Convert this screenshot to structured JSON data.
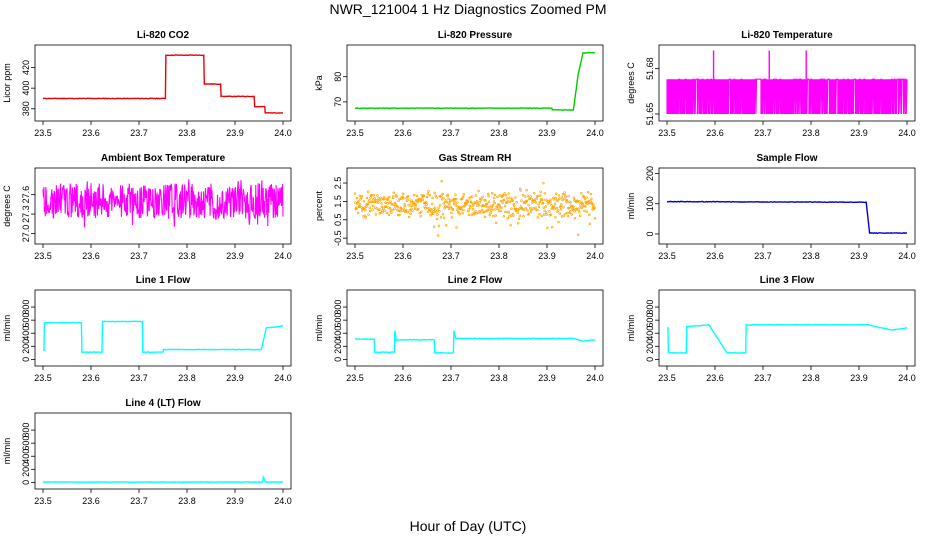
{
  "page": {
    "title": "NWR_121004  1 Hz Diagnostics Zoomed PM",
    "xlabel": "Hour of Day (UTC)"
  },
  "chart_data": [
    {
      "type": "line",
      "title": "Li-820 CO2",
      "ylabel": "Licor ppm",
      "color": "#e8000b",
      "xlim": [
        23.5,
        24.0
      ],
      "ylim": [
        372,
        438
      ],
      "xticks": [
        "23.5",
        "23.6",
        "23.7",
        "23.8",
        "23.9",
        "24.0"
      ],
      "yticks": [
        380,
        400,
        420
      ],
      "series": [
        {
          "x": [
            23.5,
            23.755,
            23.756,
            23.835,
            23.836,
            23.87,
            23.871,
            23.94,
            23.941,
            23.962,
            23.963,
            24.0
          ],
          "y": [
            390,
            390,
            432,
            432,
            404,
            404,
            392,
            392,
            382,
            382,
            376,
            376
          ]
        }
      ]
    },
    {
      "type": "line",
      "title": "Li-820 Pressure",
      "ylabel": "kPa",
      "color": "#00cc00",
      "xlim": [
        23.5,
        24.0
      ],
      "ylim": [
        64,
        91
      ],
      "xticks": [
        "23.5",
        "23.6",
        "23.7",
        "23.8",
        "23.9",
        "24.0"
      ],
      "yticks": [
        70,
        80
      ],
      "series": [
        {
          "x": [
            23.5,
            23.91,
            23.911,
            23.955,
            23.965,
            23.975,
            24.0
          ],
          "y": [
            67.5,
            67.5,
            66.8,
            66.8,
            81,
            89.5,
            89.5
          ]
        }
      ]
    },
    {
      "type": "line",
      "title": "Li-820 Temperature",
      "ylabel": "degrees C",
      "color": "#ff00ff",
      "xlim": [
        23.5,
        24.0
      ],
      "ylim": [
        51.648,
        51.693
      ],
      "xticks": [
        "23.5",
        "23.6",
        "23.7",
        "23.8",
        "23.9",
        "24.0"
      ],
      "yticks": [
        51.65,
        51.68
      ],
      "yticklabels": [
        "51.65",
        "51.68"
      ],
      "noise": {
        "low": 51.65,
        "high": 51.673,
        "spikes": [
          23.597,
          23.713,
          23.79
        ],
        "spike_value": 51.692
      }
    },
    {
      "type": "line",
      "title": "Ambient Box Temperature",
      "ylabel": "degrees C",
      "color": "#ff00ff",
      "xlim": [
        23.5,
        24.0
      ],
      "ylim": [
        26.9,
        27.95
      ],
      "xticks": [
        "23.5",
        "23.6",
        "23.7",
        "23.8",
        "23.9",
        "24.0"
      ],
      "yticks": [
        27.0,
        27.3,
        27.6
      ],
      "yticklabels": [
        "27.0",
        "27.3",
        "27.6"
      ],
      "noise": {
        "center": 27.5,
        "range": [
          27.05,
          27.87
        ]
      }
    },
    {
      "type": "scatter",
      "title": "Gas Stream RH",
      "ylabel": "percent",
      "color": "#ffa500",
      "xlim": [
        23.5,
        24.0
      ],
      "ylim": [
        -0.6,
        3.1
      ],
      "xticks": [
        "23.5",
        "23.6",
        "23.7",
        "23.8",
        "23.9",
        "24.0"
      ],
      "yticks": [
        -0.5,
        0.5,
        1.5,
        2.5
      ],
      "yticklabels": [
        "-0.5",
        "0.5",
        "1.5",
        "2.5"
      ],
      "noise": {
        "center": 1.3,
        "range": [
          -0.4,
          2.9
        ]
      }
    },
    {
      "type": "line",
      "title": "Sample Flow",
      "ylabel": "ml/min",
      "color": "#0000cc",
      "xlim": [
        23.5,
        24.0
      ],
      "ylim": [
        -20,
        205
      ],
      "xticks": [
        "23.5",
        "23.6",
        "23.7",
        "23.8",
        "23.9",
        "24.0"
      ],
      "yticks": [
        0,
        100,
        200
      ],
      "series": [
        {
          "x": [
            23.5,
            23.915,
            23.922,
            24.0
          ],
          "y": [
            107,
            105,
            3,
            3
          ]
        }
      ]
    },
    {
      "type": "line",
      "title": "Line 1 Flow",
      "ylabel": "ml/min",
      "color": "#00ffff",
      "xlim": [
        23.5,
        24.0
      ],
      "ylim": [
        -40,
        1000
      ],
      "xticks": [
        "23.5",
        "23.6",
        "23.7",
        "23.8",
        "23.9",
        "24.0"
      ],
      "yticks": [
        0,
        200,
        400,
        600,
        800
      ],
      "series": [
        {
          "x": [
            23.5,
            23.502,
            23.503,
            23.58,
            23.581,
            23.623,
            23.624,
            23.707,
            23.708,
            23.75,
            23.751,
            23.955,
            23.965,
            23.99,
            24.0
          ],
          "y": [
            140,
            140,
            560,
            560,
            110,
            110,
            580,
            580,
            110,
            110,
            150,
            150,
            480,
            500,
            510
          ]
        }
      ]
    },
    {
      "type": "line",
      "title": "Line 2 Flow",
      "ylabel": "ml/min",
      "color": "#00ffff",
      "xlim": [
        23.5,
        24.0
      ],
      "ylim": [
        -40,
        1000
      ],
      "xticks": [
        "23.5",
        "23.6",
        "23.7",
        "23.8",
        "23.9",
        "24.0"
      ],
      "yticks": [
        0,
        200,
        400,
        600,
        800
      ],
      "series": [
        {
          "x": [
            23.5,
            23.54,
            23.541,
            23.582,
            23.583,
            23.586,
            23.587,
            23.665,
            23.666,
            23.705,
            23.706,
            23.71,
            23.711,
            23.955,
            23.975,
            24.0
          ],
          "y": [
            310,
            310,
            110,
            110,
            440,
            290,
            300,
            300,
            100,
            100,
            440,
            320,
            320,
            320,
            280,
            300
          ]
        }
      ]
    },
    {
      "type": "line",
      "title": "Line 3 Flow",
      "ylabel": "ml/min",
      "color": "#00ffff",
      "xlim": [
        23.5,
        24.0
      ],
      "ylim": [
        -40,
        1000
      ],
      "xticks": [
        "23.5",
        "23.6",
        "23.7",
        "23.8",
        "23.9",
        "24.0"
      ],
      "yticks": [
        0,
        200,
        400,
        600,
        800
      ],
      "series": [
        {
          "x": [
            23.5,
            23.502,
            23.503,
            23.54,
            23.541,
            23.586,
            23.587,
            23.625,
            23.626,
            23.664,
            23.665,
            23.675,
            23.676,
            23.92,
            23.94,
            23.97,
            24.0
          ],
          "y": [
            480,
            480,
            100,
            100,
            500,
            530,
            530,
            100,
            100,
            100,
            530,
            520,
            530,
            530,
            490,
            450,
            480
          ]
        }
      ]
    },
    {
      "type": "line",
      "title": "Line 4 (LT) Flow",
      "ylabel": "ml/min",
      "color": "#00ffff",
      "xlim": [
        23.5,
        24.0
      ],
      "ylim": [
        -40,
        1000
      ],
      "xticks": [
        "23.5",
        "23.6",
        "23.7",
        "23.8",
        "23.9",
        "24.0"
      ],
      "yticks": [
        0,
        200,
        400,
        600,
        800
      ],
      "series": [
        {
          "x": [
            23.5,
            23.958,
            23.959,
            23.962,
            23.963,
            24.0
          ],
          "y": [
            5,
            5,
            80,
            30,
            5,
            5
          ]
        }
      ]
    }
  ]
}
